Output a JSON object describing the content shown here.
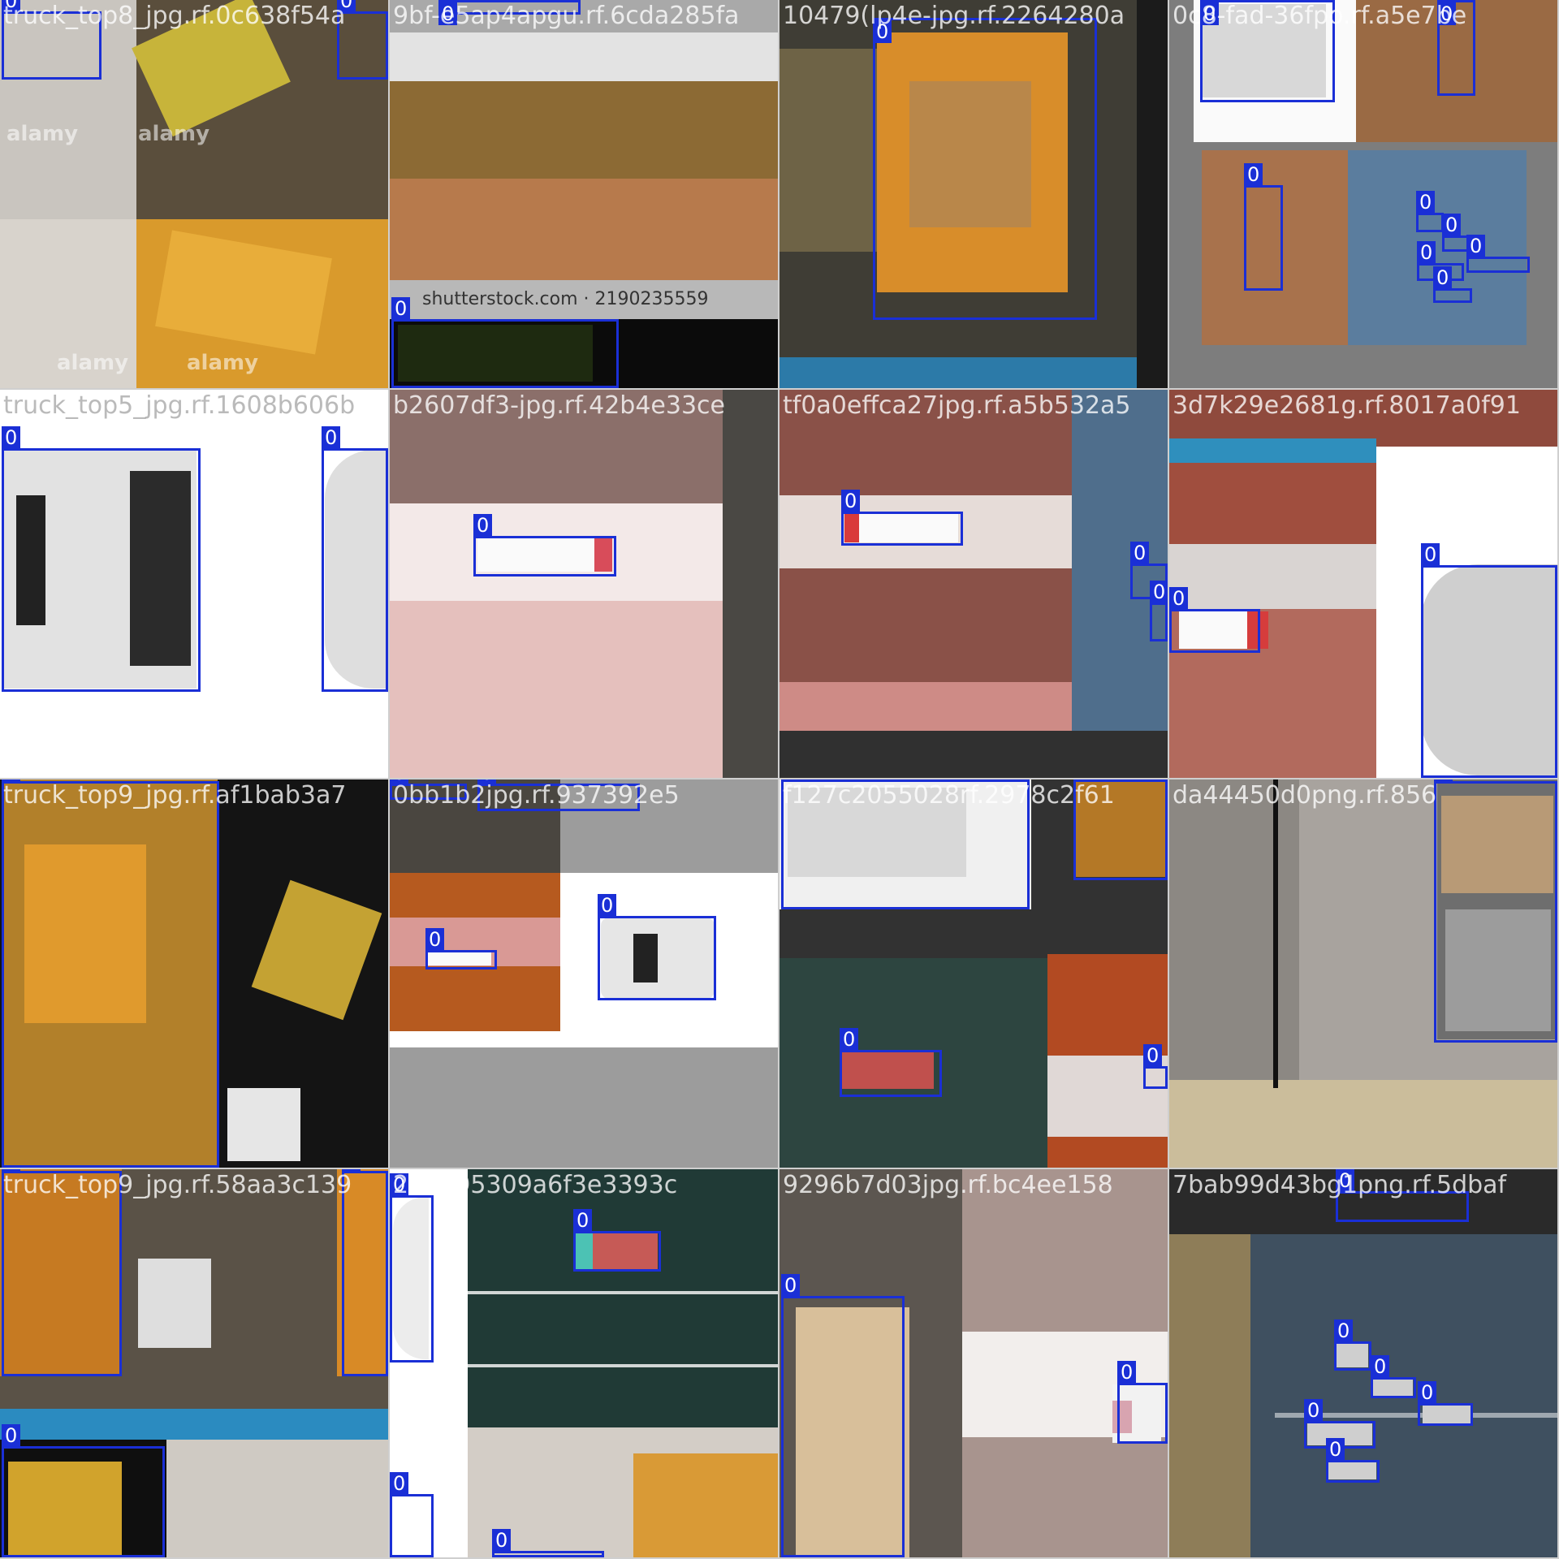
{
  "label_class": "0",
  "tiles": [
    {
      "title": "truck_top8_jpg.rf.0c638f54a",
      "watermarks": [
        "alamy",
        "alamy",
        "alamy",
        "alamy"
      ]
    },
    {
      "title": "9bf-e5ap4apgu.rf.6cda285fa",
      "stock_text": "shutterstock.com · 2190235559"
    },
    {
      "title": "10479(lp4e-jpg.rf.2264280a"
    },
    {
      "title": "0c8-fad-36fpo.rf.a5e7be"
    },
    {
      "title": "truck_top5_jpg.rf.1608b606b"
    },
    {
      "title": "b2607df3-jpg.rf.42b4e33ce"
    },
    {
      "title": "tf0a0effca27jpg.rf.a5b532a5"
    },
    {
      "title": "3d7k29e2681g.rf.8017a0f91"
    },
    {
      "title": "truck_top9_jpg.rf.af1bab3a7"
    },
    {
      "title": "0bb1b2jpg.rf.937392e5"
    },
    {
      "title": "f127c2055028rf.2978c2f61"
    },
    {
      "title": "da44450d0png.rf.856"
    },
    {
      "title": "truck_top9_jpg.rf.58aa3c139"
    },
    {
      "title": "284495309a6f3e3393c"
    },
    {
      "title": "9296b7d03jpg.rf.bc4ee158"
    },
    {
      "title": "7bab99d43bg1png.rf.5dbaf"
    }
  ]
}
